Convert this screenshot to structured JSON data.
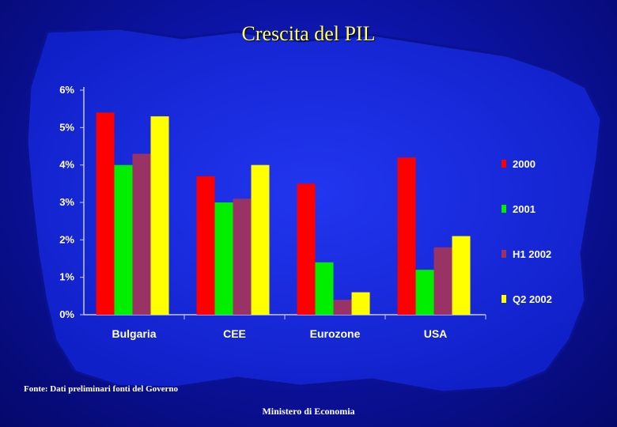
{
  "title": "Crescita del PIL",
  "source_note": "Fonte: Dati preliminari fonti del Governo",
  "footer": "Ministero di Economia",
  "chart_data": {
    "type": "bar",
    "title": "Crescita del PIL",
    "categories": [
      "Bulgaria",
      "CEE",
      "Eurozone",
      "USA"
    ],
    "series": [
      {
        "name": "2000",
        "color": "#ff0000",
        "values": [
          5.4,
          3.7,
          3.5,
          4.2
        ]
      },
      {
        "name": "2001",
        "color": "#00ee00",
        "values": [
          4.0,
          3.0,
          1.4,
          1.2
        ]
      },
      {
        "name": "H1 2002",
        "color": "#993366",
        "values": [
          4.3,
          3.1,
          0.4,
          1.8
        ]
      },
      {
        "name": "Q2 2002",
        "color": "#ffff00",
        "values": [
          5.3,
          4.0,
          0.6,
          2.1
        ]
      }
    ],
    "yticks": [
      "0%",
      "1%",
      "2%",
      "3%",
      "4%",
      "5%",
      "6%"
    ],
    "ylim": [
      0,
      6
    ],
    "legend_position": "right",
    "grid": false
  }
}
